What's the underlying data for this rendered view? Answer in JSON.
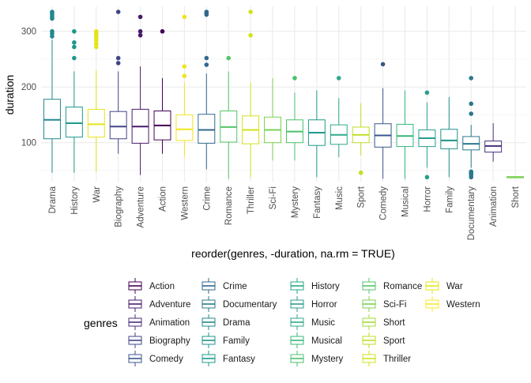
{
  "chart_data": {
    "type": "boxplot",
    "xlabel": "reorder(genres, -duration, na.rm = TRUE)",
    "ylabel": "duration",
    "y_ticks": [
      100,
      200,
      300
    ],
    "ylim": [
      30,
      345
    ],
    "grid": true,
    "legend": {
      "title": "genres",
      "placement": "bottom",
      "columns": [
        [
          "Action",
          "Adventure",
          "Animation",
          "Biography",
          "Comedy"
        ],
        [
          "Crime",
          "Documentary",
          "Drama",
          "Family",
          "Fantasy"
        ],
        [
          "History",
          "Horror",
          "Music",
          "Musical",
          "Mystery"
        ],
        [
          "Romance",
          "Sci-Fi",
          "Short",
          "Sport",
          "Thriller"
        ],
        [
          "War",
          "Western"
        ]
      ]
    },
    "colors": {
      "Action": "#440154",
      "Adventure": "#481a6c",
      "Animation": "#472f7d",
      "Biography": "#414487",
      "Comedy": "#39568c",
      "Crime": "#31688e",
      "Documentary": "#2a788e",
      "Drama": "#23888e",
      "Family": "#1f988b",
      "Fantasy": "#22a884",
      "History": "#35b779",
      "Horror": "#54c568",
      "Music": "#7ad151",
      "Musical": "#a5db36",
      "Mystery": "#d2e21b",
      "Romance": "#fde725",
      "Sci-Fi": "#26828e",
      "Short": "#7ad151",
      "Sport": "#d2e21b",
      "Thriller": "#25858e",
      "War": "#e4e419",
      "Western": "#f0e51f"
    },
    "legend_colors": {
      "Action": "#440154",
      "Adventure": "#481a6c",
      "Animation": "#472f7d",
      "Biography": "#414487",
      "Comedy": "#39568c",
      "Crime": "#31688e",
      "Documentary": "#2a788e",
      "Drama": "#23888e",
      "Family": "#21918c",
      "Fantasy": "#1f988b",
      "History": "#22a884",
      "Horror": "#2a9d8f",
      "Music": "#2fa98a",
      "Musical": "#35b779",
      "Mystery": "#4ac16d",
      "Romance": "#54c568",
      "Sci-Fi": "#7ad151",
      "Short": "#a5db36",
      "Sport": "#bddf26",
      "Thriller": "#d2e21b",
      "War": "#e4e419",
      "Western": "#fde725"
    },
    "categories": [
      "Drama",
      "History",
      "War",
      "Biography",
      "Adventure",
      "Action",
      "Western",
      "Crime",
      "Romance",
      "Thriller",
      "Sci-Fi",
      "Mystery",
      "Fantasy",
      "Music",
      "Sport",
      "Comedy",
      "Musical",
      "Horror",
      "Family",
      "Documentary",
      "Animation",
      "Short"
    ],
    "boxes": [
      {
        "genre": "Drama",
        "color": "#23888e",
        "whisker_low": 46,
        "q1": 107,
        "median": 141,
        "q3": 178,
        "whisker_high": 285,
        "outliers": [
          291,
          296,
          300,
          323,
          326,
          330,
          333,
          335
        ]
      },
      {
        "genre": "History",
        "color": "#1f988b",
        "whisker_low": 46,
        "q1": 110,
        "median": 135,
        "q3": 164,
        "whisker_high": 228,
        "outliers": [
          252,
          272,
          280,
          300
        ]
      },
      {
        "genre": "War",
        "color": "#e4e419",
        "whisker_low": 48,
        "q1": 110,
        "median": 133,
        "q3": 160,
        "whisker_high": 230,
        "outliers": [
          272,
          278,
          284,
          289,
          293,
          296,
          300
        ]
      },
      {
        "genre": "Biography",
        "color": "#414487",
        "whisker_low": 80,
        "q1": 107,
        "median": 129,
        "q3": 156,
        "whisker_high": 228,
        "outliers": [
          243,
          252,
          335
        ]
      },
      {
        "genre": "Adventure",
        "color": "#481a6c",
        "whisker_low": 42,
        "q1": 99,
        "median": 129,
        "q3": 160,
        "whisker_high": 237,
        "outliers": [
          293,
          300,
          326
        ]
      },
      {
        "genre": "Action",
        "color": "#440154",
        "whisker_low": 80,
        "q1": 105,
        "median": 131,
        "q3": 157,
        "whisker_high": 216,
        "outliers": [
          300
        ]
      },
      {
        "genre": "Western",
        "color": "#f0e51f",
        "whisker_low": 75,
        "q1": 104,
        "median": 124,
        "q3": 150,
        "whisker_high": 208,
        "outliers": [
          220,
          237,
          326
        ]
      },
      {
        "genre": "Crime",
        "color": "#31688e",
        "whisker_low": 52,
        "q1": 99,
        "median": 123,
        "q3": 151,
        "whisker_high": 224,
        "outliers": [
          240,
          252,
          330,
          333,
          335
        ]
      },
      {
        "genre": "Romance",
        "color": "#54c568",
        "whisker_low": 35,
        "q1": 101,
        "median": 128,
        "q3": 157,
        "whisker_high": 228,
        "outliers": [
          252
        ]
      },
      {
        "genre": "Thriller",
        "color": "#d2e21b",
        "whisker_low": 38,
        "q1": 98,
        "median": 123,
        "q3": 148,
        "whisker_high": 208,
        "outliers": [
          293,
          335
        ]
      },
      {
        "genre": "Sci-Fi",
        "color": "#7ad151",
        "whisker_low": 68,
        "q1": 100,
        "median": 123,
        "q3": 146,
        "whisker_high": 216,
        "outliers": []
      },
      {
        "genre": "Mystery",
        "color": "#4ac16d",
        "whisker_low": 68,
        "q1": 100,
        "median": 120,
        "q3": 141,
        "whisker_high": 190,
        "outliers": [
          216
        ]
      },
      {
        "genre": "Fantasy",
        "color": "#1f988b",
        "whisker_low": 38,
        "q1": 95,
        "median": 118,
        "q3": 141,
        "whisker_high": 194,
        "outliers": []
      },
      {
        "genre": "Music",
        "color": "#2fa98a",
        "whisker_low": 74,
        "q1": 97,
        "median": 114,
        "q3": 132,
        "whisker_high": 180,
        "outliers": [
          216
        ]
      },
      {
        "genre": "Sport",
        "color": "#bddf26",
        "whisker_low": 77,
        "q1": 100,
        "median": 114,
        "q3": 128,
        "whisker_high": 171,
        "outliers": [
          46
        ]
      },
      {
        "genre": "Comedy",
        "color": "#39568c",
        "whisker_low": 35,
        "q1": 92,
        "median": 113,
        "q3": 134,
        "whisker_high": 198,
        "outliers": [
          241
        ]
      },
      {
        "genre": "Musical",
        "color": "#35b779",
        "whisker_low": 35,
        "q1": 93,
        "median": 112,
        "q3": 133,
        "whisker_high": 194,
        "outliers": []
      },
      {
        "genre": "Horror",
        "color": "#2a9d8f",
        "whisker_low": 55,
        "q1": 93,
        "median": 108,
        "q3": 123,
        "whisker_high": 172,
        "outliers": [
          38,
          190
        ]
      },
      {
        "genre": "Family",
        "color": "#21918c",
        "whisker_low": 38,
        "q1": 89,
        "median": 104,
        "q3": 124,
        "whisker_high": 182,
        "outliers": []
      },
      {
        "genre": "Documentary",
        "color": "#2a788e",
        "whisker_low": 55,
        "q1": 87,
        "median": 98,
        "q3": 111,
        "whisker_high": 132,
        "outliers": [
          38,
          42,
          44,
          46,
          48,
          152,
          170,
          216
        ]
      },
      {
        "genre": "Animation",
        "color": "#472f7d",
        "whisker_low": 66,
        "q1": 83,
        "median": 94,
        "q3": 103,
        "whisker_high": 135,
        "outliers": []
      },
      {
        "genre": "Short",
        "color": "#7ad151",
        "whisker_low": 37,
        "q1": 37,
        "median": 38,
        "q3": 39,
        "whisker_high": 40,
        "outliers": []
      }
    ]
  }
}
